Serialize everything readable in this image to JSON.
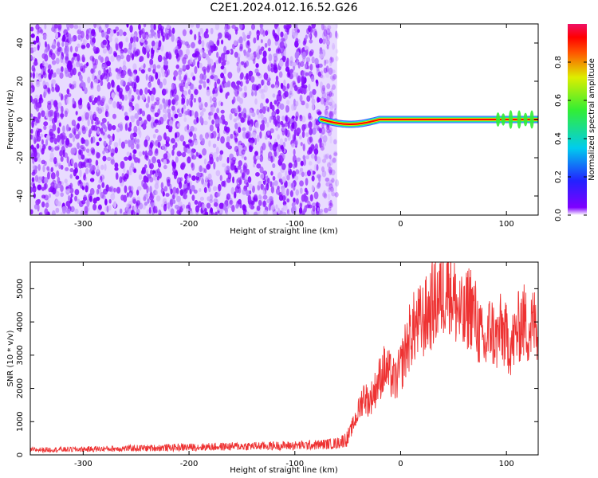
{
  "title": "C2E1.2024.012.16.52.G26",
  "colors": {
    "spectrogram_noise": "#7f00ff",
    "spectrogram_peak": "#ff0000",
    "snr_line": "#ee3333",
    "axes": "#000000"
  },
  "chart_data": [
    {
      "type": "heatmap",
      "xlabel": "Height of straight line (km)",
      "ylabel": "Frequency (Hz)",
      "xlim": [
        -350,
        130
      ],
      "ylim": [
        -50,
        50
      ],
      "xticks": [
        -300,
        -200,
        -100,
        0,
        100
      ],
      "yticks": [
        -40,
        -20,
        0,
        20,
        40
      ],
      "colorbar": {
        "label": "Normalized spectral amplitude",
        "colormap": "rainbow (violet at 0, red/magenta at 1)",
        "range": [
          0.0,
          1.0
        ],
        "ticks": [
          0.0,
          0.2,
          0.4,
          0.6,
          0.8
        ]
      },
      "signal_band": {
        "x_start": -75,
        "x_end": 130,
        "frequency": 0,
        "amplitude": 1.0
      },
      "noise_region": {
        "x_start": -350,
        "x_end": -60,
        "amplitude": 0.1
      }
    },
    {
      "type": "line",
      "xlabel": "Height of straight line (km)",
      "ylabel": "SNR (10 * v/v)",
      "xlim": [
        -350,
        130
      ],
      "ylim": [
        0,
        5800
      ],
      "xticks": [
        -300,
        -200,
        -100,
        0,
        100
      ],
      "yticks": [
        0,
        1000,
        2000,
        3000,
        4000,
        5000
      ],
      "series": [
        {
          "x": [
            -350,
            -300,
            -250,
            -200,
            -150,
            -100,
            -80,
            -60,
            -50,
            -45,
            -40,
            -35,
            -30,
            -25,
            -20,
            -15,
            -10,
            -5,
            0,
            5,
            10,
            15,
            20,
            25,
            30,
            35,
            40,
            45,
            50,
            55,
            60,
            65,
            70,
            75,
            80,
            85,
            90,
            95,
            100,
            105,
            110,
            115,
            120,
            125,
            130
          ],
          "values": [
            150,
            170,
            200,
            230,
            260,
            280,
            300,
            350,
            500,
            900,
            1300,
            1800,
            1600,
            1900,
            2300,
            2600,
            2400,
            2200,
            2600,
            3200,
            3700,
            3900,
            4000,
            4200,
            4500,
            4700,
            4900,
            5300,
            4700,
            4300,
            4000,
            4600,
            4200,
            3600,
            3200,
            3900,
            3400,
            3800,
            3500,
            3300,
            3700,
            4100,
            3800,
            3900,
            4000
          ]
        }
      ]
    }
  ]
}
